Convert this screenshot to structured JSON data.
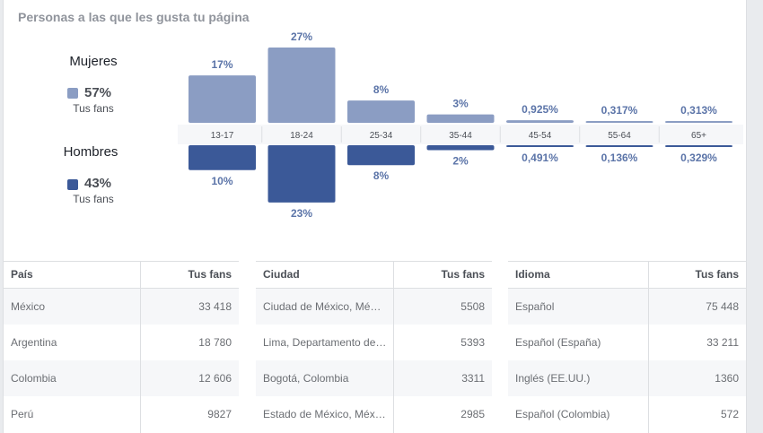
{
  "title": "Personas a las que les gusta tu página",
  "legend": {
    "women": {
      "label": "Mujeres",
      "pct": "57%",
      "sub": "Tus fans",
      "color": "#8b9dc3"
    },
    "men": {
      "label": "Hombres",
      "pct": "43%",
      "sub": "Tus fans",
      "color": "#3b5998"
    }
  },
  "chart_data": {
    "type": "bar",
    "categories": [
      "13-17",
      "18-24",
      "25-34",
      "35-44",
      "45-54",
      "55-64",
      "65+"
    ],
    "series": [
      {
        "name": "Mujeres",
        "values": [
          17,
          27,
          8,
          3,
          0.925,
          0.317,
          0.313
        ],
        "labels": [
          "17%",
          "27%",
          "8%",
          "3%",
          "0,925%",
          "0,317%",
          "0,313%"
        ],
        "color": "#8b9dc3"
      },
      {
        "name": "Hombres",
        "values": [
          10,
          23,
          8,
          2,
          0.491,
          0.136,
          0.329
        ],
        "labels": [
          "10%",
          "23%",
          "8%",
          "2%",
          "0,491%",
          "0,136%",
          "0,329%"
        ],
        "color": "#3b5998"
      }
    ],
    "ylim": [
      0,
      27
    ]
  },
  "tables": [
    {
      "col1": "País",
      "col2": "Tus fans",
      "rows": [
        {
          "name": "México",
          "value": "33 418"
        },
        {
          "name": "Argentina",
          "value": "18 780"
        },
        {
          "name": "Colombia",
          "value": "12 606"
        },
        {
          "name": "Perú",
          "value": "9827"
        }
      ]
    },
    {
      "col1": "Ciudad",
      "col2": "Tus fans",
      "rows": [
        {
          "name": "Ciudad de México, Mé…",
          "value": "5508"
        },
        {
          "name": "Lima, Departamento de…",
          "value": "5393"
        },
        {
          "name": "Bogotá, Colombia",
          "value": "3311"
        },
        {
          "name": "Estado de México, Méx…",
          "value": "2985"
        }
      ]
    },
    {
      "col1": "Idioma",
      "col2": "Tus fans",
      "rows": [
        {
          "name": "Español",
          "value": "75 448"
        },
        {
          "name": "Español (España)",
          "value": "33 211"
        },
        {
          "name": "Inglés (EE.UU.)",
          "value": "1360"
        },
        {
          "name": "Español (Colombia)",
          "value": "572"
        }
      ]
    }
  ]
}
